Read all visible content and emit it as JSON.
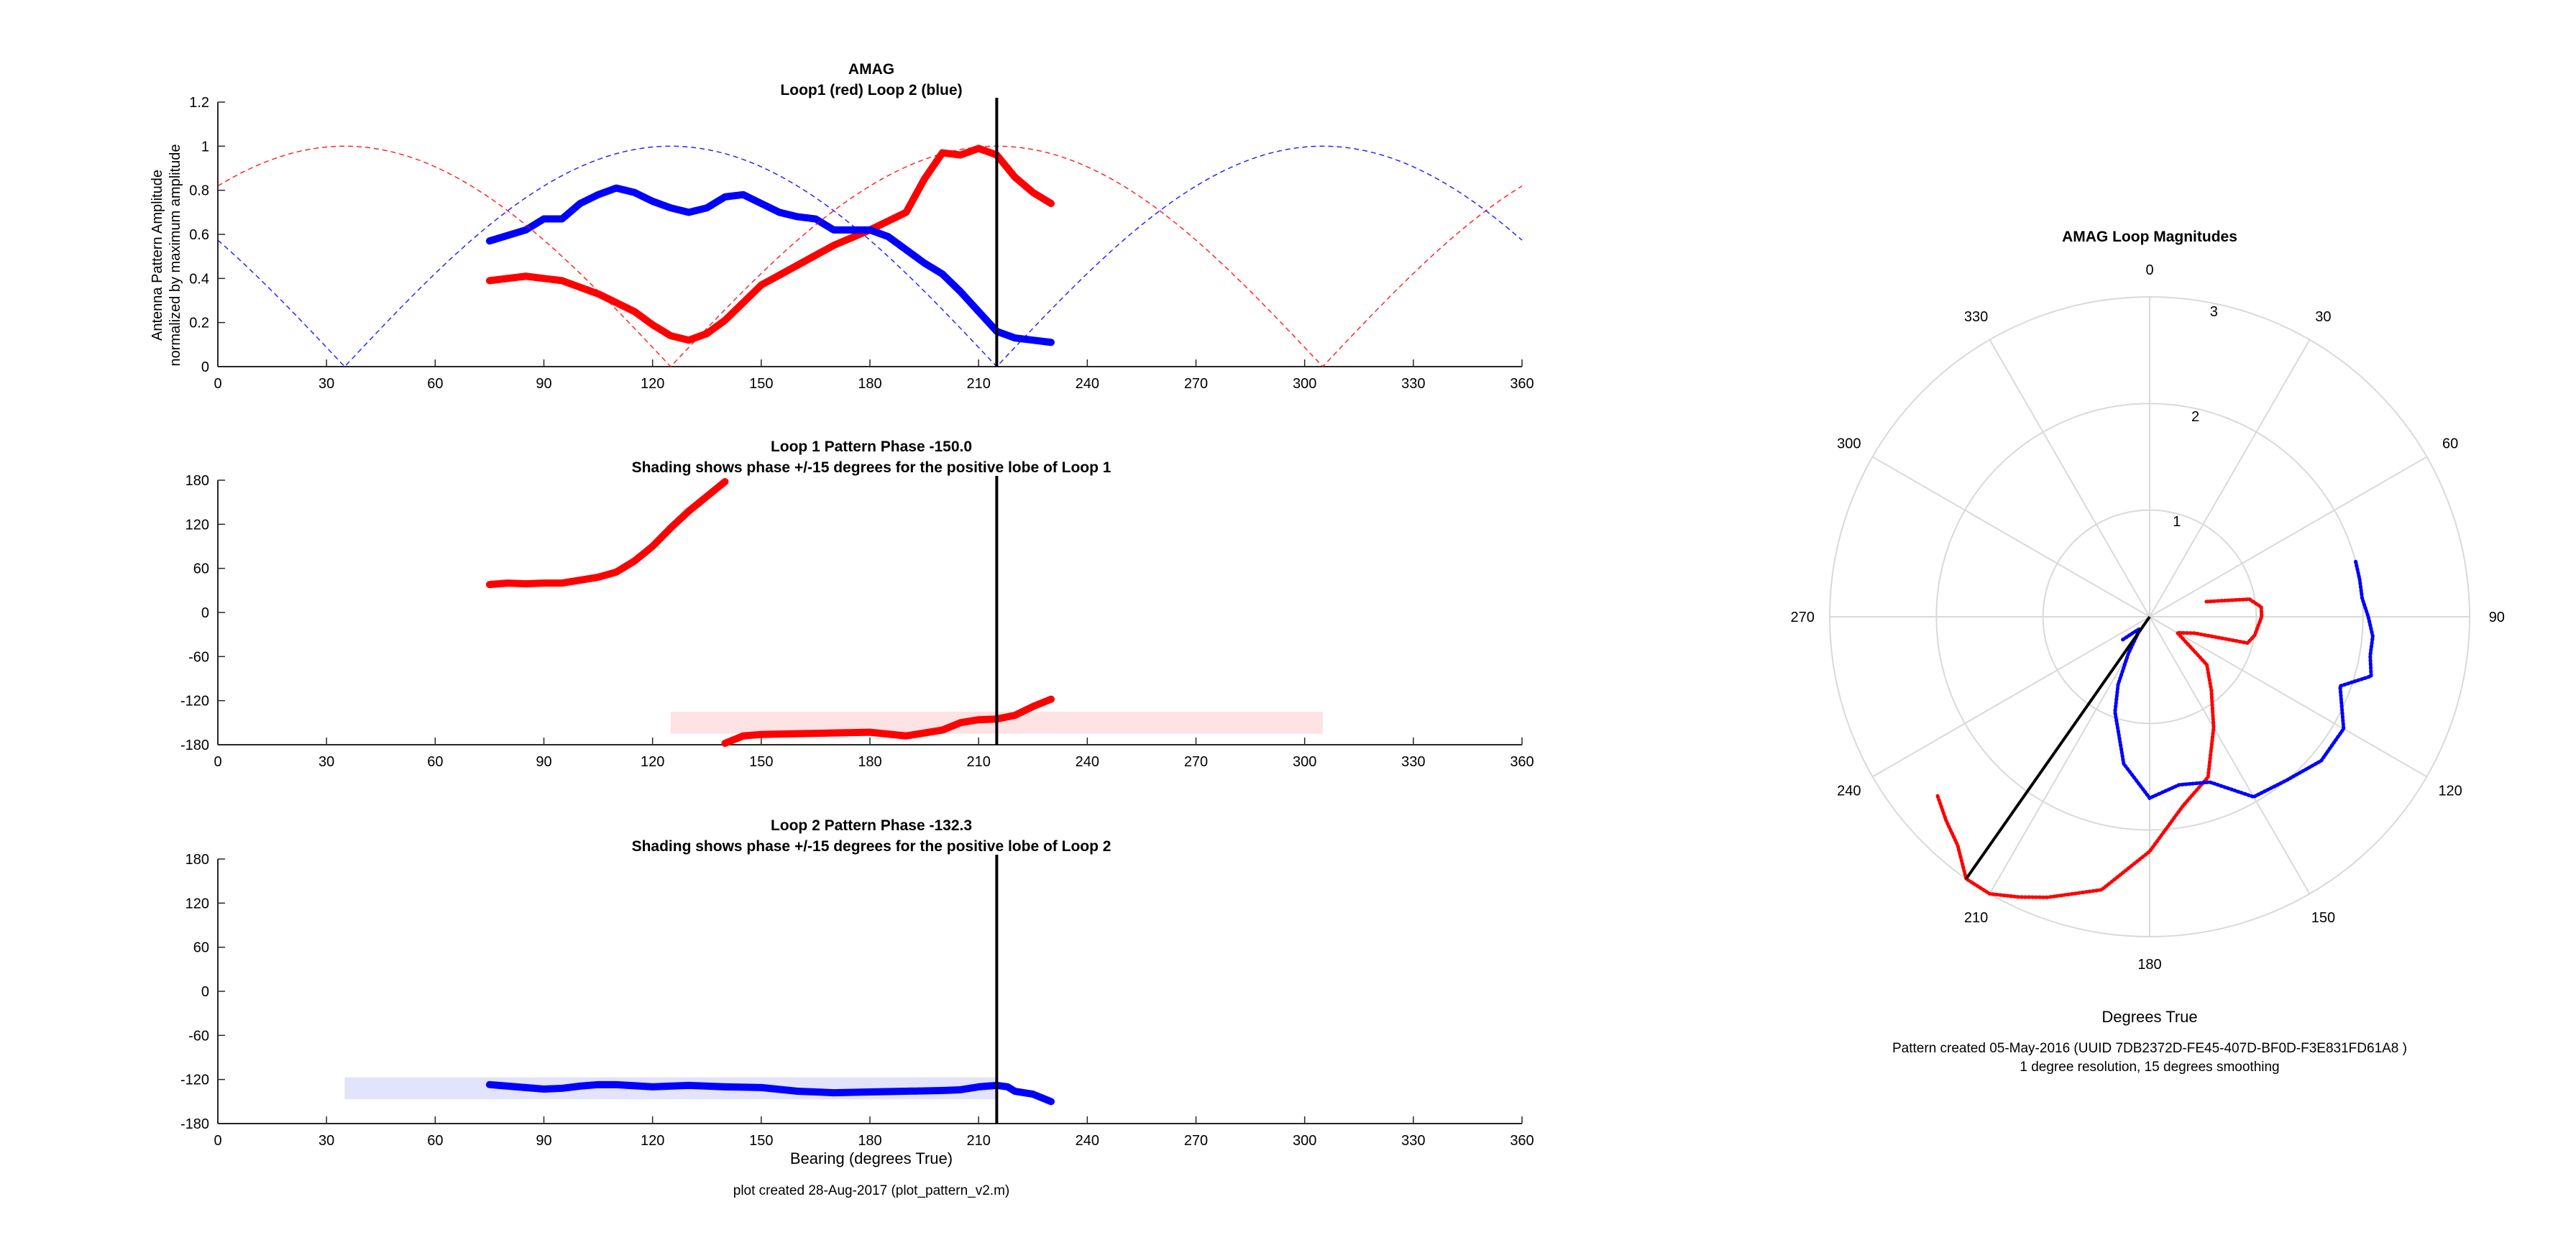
{
  "chart_data": [
    {
      "type": "line",
      "title": "AMAG",
      "subtitle": "Loop1 (red) Loop 2 (blue)",
      "xlabel": "",
      "ylabel": "Antenna Pattern Amplitude",
      "ylabel2": "normalized by maximum amplitude",
      "xlim": [
        0,
        360
      ],
      "ylim": [
        0,
        1.2
      ],
      "xticks": [
        "0",
        "30",
        "60",
        "90",
        "120",
        "150",
        "180",
        "210",
        "240",
        "270",
        "300",
        "330",
        "360"
      ],
      "yticks": [
        "0",
        "0.2",
        "0.4",
        "0.6",
        "0.8",
        "1",
        "1.2"
      ],
      "grid": false,
      "marker_bearing": 215,
      "colors": {
        "loop1": "#ff0000",
        "loop2": "#0000ff",
        "marker": "#000000"
      },
      "series": [
        {
          "color": "#ff0000",
          "style": "thick",
          "x": [
            75,
            85,
            95,
            105,
            115,
            120,
            125,
            130,
            135,
            140,
            145,
            150,
            160,
            170,
            180,
            190,
            195,
            200,
            205,
            210,
            215,
            220,
            225,
            230
          ],
          "y": [
            0.39,
            0.41,
            0.39,
            0.33,
            0.25,
            0.19,
            0.14,
            0.12,
            0.15,
            0.21,
            0.29,
            0.37,
            0.46,
            0.55,
            0.62,
            0.7,
            0.85,
            0.97,
            0.96,
            0.99,
            0.96,
            0.86,
            0.79,
            0.74
          ]
        },
        {
          "color": "#0000ff",
          "style": "thick",
          "x": [
            75,
            85,
            90,
            95,
            100,
            105,
            110,
            115,
            120,
            125,
            130,
            135,
            140,
            145,
            150,
            155,
            160,
            165,
            170,
            175,
            180,
            185,
            190,
            195,
            200,
            205,
            210,
            215,
            220,
            225,
            230
          ],
          "y": [
            0.57,
            0.62,
            0.67,
            0.67,
            0.74,
            0.78,
            0.81,
            0.79,
            0.75,
            0.72,
            0.7,
            0.72,
            0.77,
            0.78,
            0.74,
            0.7,
            0.68,
            0.67,
            0.62,
            0.62,
            0.62,
            0.59,
            0.53,
            0.47,
            0.42,
            0.34,
            0.25,
            0.16,
            0.13,
            0.12,
            0.11
          ]
        },
        {
          "color": "#ff0000",
          "style": "dashed",
          "model": "abs_cos",
          "null_bearing": 125
        },
        {
          "color": "#0000ff",
          "style": "dashed",
          "model": "abs_cos",
          "null_bearing": 35
        }
      ]
    },
    {
      "type": "line",
      "title": "Loop 1 Pattern Phase -150.0",
      "subtitle": "Shading shows phase +/-15 degrees for the positive lobe of Loop 1",
      "xlim": [
        0,
        360
      ],
      "ylim": [
        -180,
        180
      ],
      "xticks": [
        "0",
        "30",
        "60",
        "90",
        "120",
        "150",
        "180",
        "210",
        "240",
        "270",
        "300",
        "330",
        "360"
      ],
      "yticks": [
        "180",
        "120",
        "60",
        "0",
        "-60",
        "-120",
        "-180"
      ],
      "marker_bearing": 215,
      "shading": {
        "x": [
          125,
          305
        ],
        "y": [
          -165,
          -135
        ],
        "color": "#fde3e3"
      },
      "series": [
        {
          "color": "#ff0000",
          "x": [
            75,
            80,
            85,
            90,
            95,
            100,
            105,
            110,
            115,
            120,
            125,
            130,
            135,
            140
          ],
          "y": [
            38,
            40,
            39,
            40,
            40,
            44,
            48,
            55,
            70,
            90,
            115,
            138,
            158,
            178
          ]
        },
        {
          "color": "#ff0000",
          "x": [
            140,
            145,
            150,
            160,
            170,
            180,
            190,
            200,
            205,
            210,
            215,
            220,
            225,
            230
          ],
          "y": [
            -178,
            -168,
            -166,
            -165,
            -164,
            -163,
            -168,
            -160,
            -150,
            -146,
            -145,
            -140,
            -128,
            -118
          ]
        }
      ]
    },
    {
      "type": "line",
      "title": "Loop 2 Pattern Phase -132.3",
      "subtitle": "Shading shows phase +/-15 degrees for the positive lobe of Loop 2",
      "xlabel": "Bearing (degrees True)",
      "xlim": [
        0,
        360
      ],
      "ylim": [
        -180,
        180
      ],
      "xticks": [
        "0",
        "30",
        "60",
        "90",
        "120",
        "150",
        "180",
        "210",
        "240",
        "270",
        "300",
        "330",
        "360"
      ],
      "yticks": [
        "180",
        "120",
        "60",
        "0",
        "-60",
        "-120",
        "-180"
      ],
      "marker_bearing": 215,
      "shading": {
        "x": [
          35,
          215
        ],
        "y": [
          -147,
          -117
        ],
        "color": "#e3e3fb"
      },
      "series": [
        {
          "color": "#0000ff",
          "x": [
            75,
            80,
            90,
            95,
            100,
            105,
            110,
            120,
            130,
            140,
            150,
            160,
            170,
            180,
            190,
            200,
            205,
            210,
            215,
            218,
            220,
            225,
            230
          ],
          "y": [
            -127,
            -129,
            -133,
            -132,
            -129,
            -127,
            -127,
            -130,
            -128,
            -130,
            -131,
            -136,
            -138,
            -137,
            -136,
            -135,
            -134,
            -130,
            -128,
            -130,
            -136,
            -140,
            -150
          ]
        }
      ]
    },
    {
      "type": "polar",
      "title": "AMAG Loop Magnitudes",
      "xlabel": "Degrees True",
      "theta_zero": "top",
      "theta_direction": "clockwise",
      "theta_ticks": [
        "0",
        "30",
        "60",
        "90",
        "120",
        "150",
        "180",
        "210",
        "240",
        "270",
        "300",
        "330"
      ],
      "r_ticks": [
        "1",
        "2",
        "3"
      ],
      "rlim": [
        0,
        3
      ],
      "grid": true,
      "marker_bearing": 215,
      "marker_r": 3.0,
      "series": [
        {
          "color": "#ff0000",
          "theta": [
            75,
            80,
            85,
            90,
            95,
            100,
            105,
            110,
            120,
            130,
            140,
            150,
            160,
            170,
            180,
            190,
            200,
            205,
            210,
            215,
            220,
            225,
            230
          ],
          "r": [
            0.55,
            0.95,
            1.05,
            1.05,
            1.02,
            1.0,
            0.95,
            0.45,
            0.3,
            0.7,
            0.9,
            1.2,
            1.6,
            1.8,
            2.2,
            2.6,
            2.8,
            2.9,
            3.0,
            3.0,
            2.8,
            2.7,
            2.6
          ]
        },
        {
          "color": "#0000ff",
          "theta": [
            75,
            80,
            85,
            90,
            95,
            100,
            105,
            110,
            120,
            130,
            140,
            150,
            160,
            170,
            180,
            190,
            200,
            205,
            210,
            215,
            220,
            225,
            230
          ],
          "r": [
            2.0,
            2.0,
            2.0,
            2.05,
            2.1,
            2.1,
            2.15,
            1.9,
            2.1,
            2.1,
            2.0,
            1.95,
            1.65,
            1.6,
            1.7,
            1.4,
            0.95,
            0.7,
            0.4,
            0.2,
            0.15,
            0.2,
            0.35
          ]
        }
      ]
    }
  ],
  "footer": {
    "left": "plot created 28-Aug-2017 (plot_pattern_v2.m)",
    "right_line1": "Pattern created 05-May-2016 (UUID 7DB2372D-FE45-407D-BF0D-F3E831FD61A8 )",
    "right_line2": "1 degree resolution, 15 degrees smoothing"
  }
}
